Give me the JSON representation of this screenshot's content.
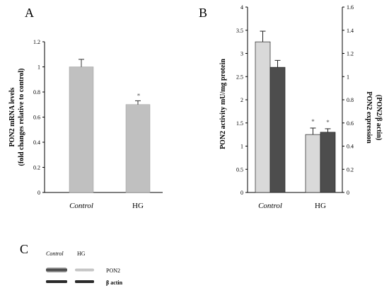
{
  "panels": {
    "a": "A",
    "b": "B",
    "c": "C"
  },
  "chart_data": [
    {
      "type": "bar",
      "panel": "A",
      "categories": [
        "Control",
        "HG"
      ],
      "values": [
        1.0,
        0.7
      ],
      "errors": [
        0.06,
        0.03
      ],
      "significance": [
        "",
        "*"
      ],
      "ylabel_lines": [
        "PON2 mRNA levels",
        "(fold changes relative to control)"
      ],
      "ylim": [
        0,
        1.2
      ],
      "yticks": [
        "0",
        "0.2",
        "0.4",
        "0.6",
        "0.8",
        "1",
        "1.2"
      ],
      "colors": {
        "bar": "#c0c0c0"
      }
    },
    {
      "type": "bar",
      "panel": "B",
      "categories": [
        "Control",
        "HG"
      ],
      "series": [
        {
          "axis": "left",
          "values": [
            3.25,
            1.25
          ],
          "errors": [
            0.23,
            0.14
          ],
          "significance": [
            "",
            "*"
          ],
          "color": "#d9d9d9"
        },
        {
          "axis": "right",
          "values": [
            1.08,
            0.52
          ],
          "errors": [
            0.06,
            0.03
          ],
          "significance": [
            "",
            "*"
          ],
          "color": "#4d4d4d"
        }
      ],
      "ylabel_left": "PON2 activity mU/mg protein",
      "ylabel_right_lines": [
        "PON2 expression",
        "(PON2/β actin)"
      ],
      "ylim_left": [
        0,
        4
      ],
      "yticks_left": [
        "0",
        "0.5",
        "1",
        "1.5",
        "2",
        "2.5",
        "3",
        "3.5",
        "4"
      ],
      "ylim_right": [
        0,
        1.6
      ],
      "yticks_right": [
        "0",
        "0.2",
        "0.4",
        "0.6",
        "0.8",
        "1",
        "1.2",
        "1.4",
        "1.6"
      ]
    }
  ],
  "blot": {
    "lanes": [
      "Control",
      "HG"
    ],
    "bands": [
      "PON2",
      "β actin"
    ]
  }
}
